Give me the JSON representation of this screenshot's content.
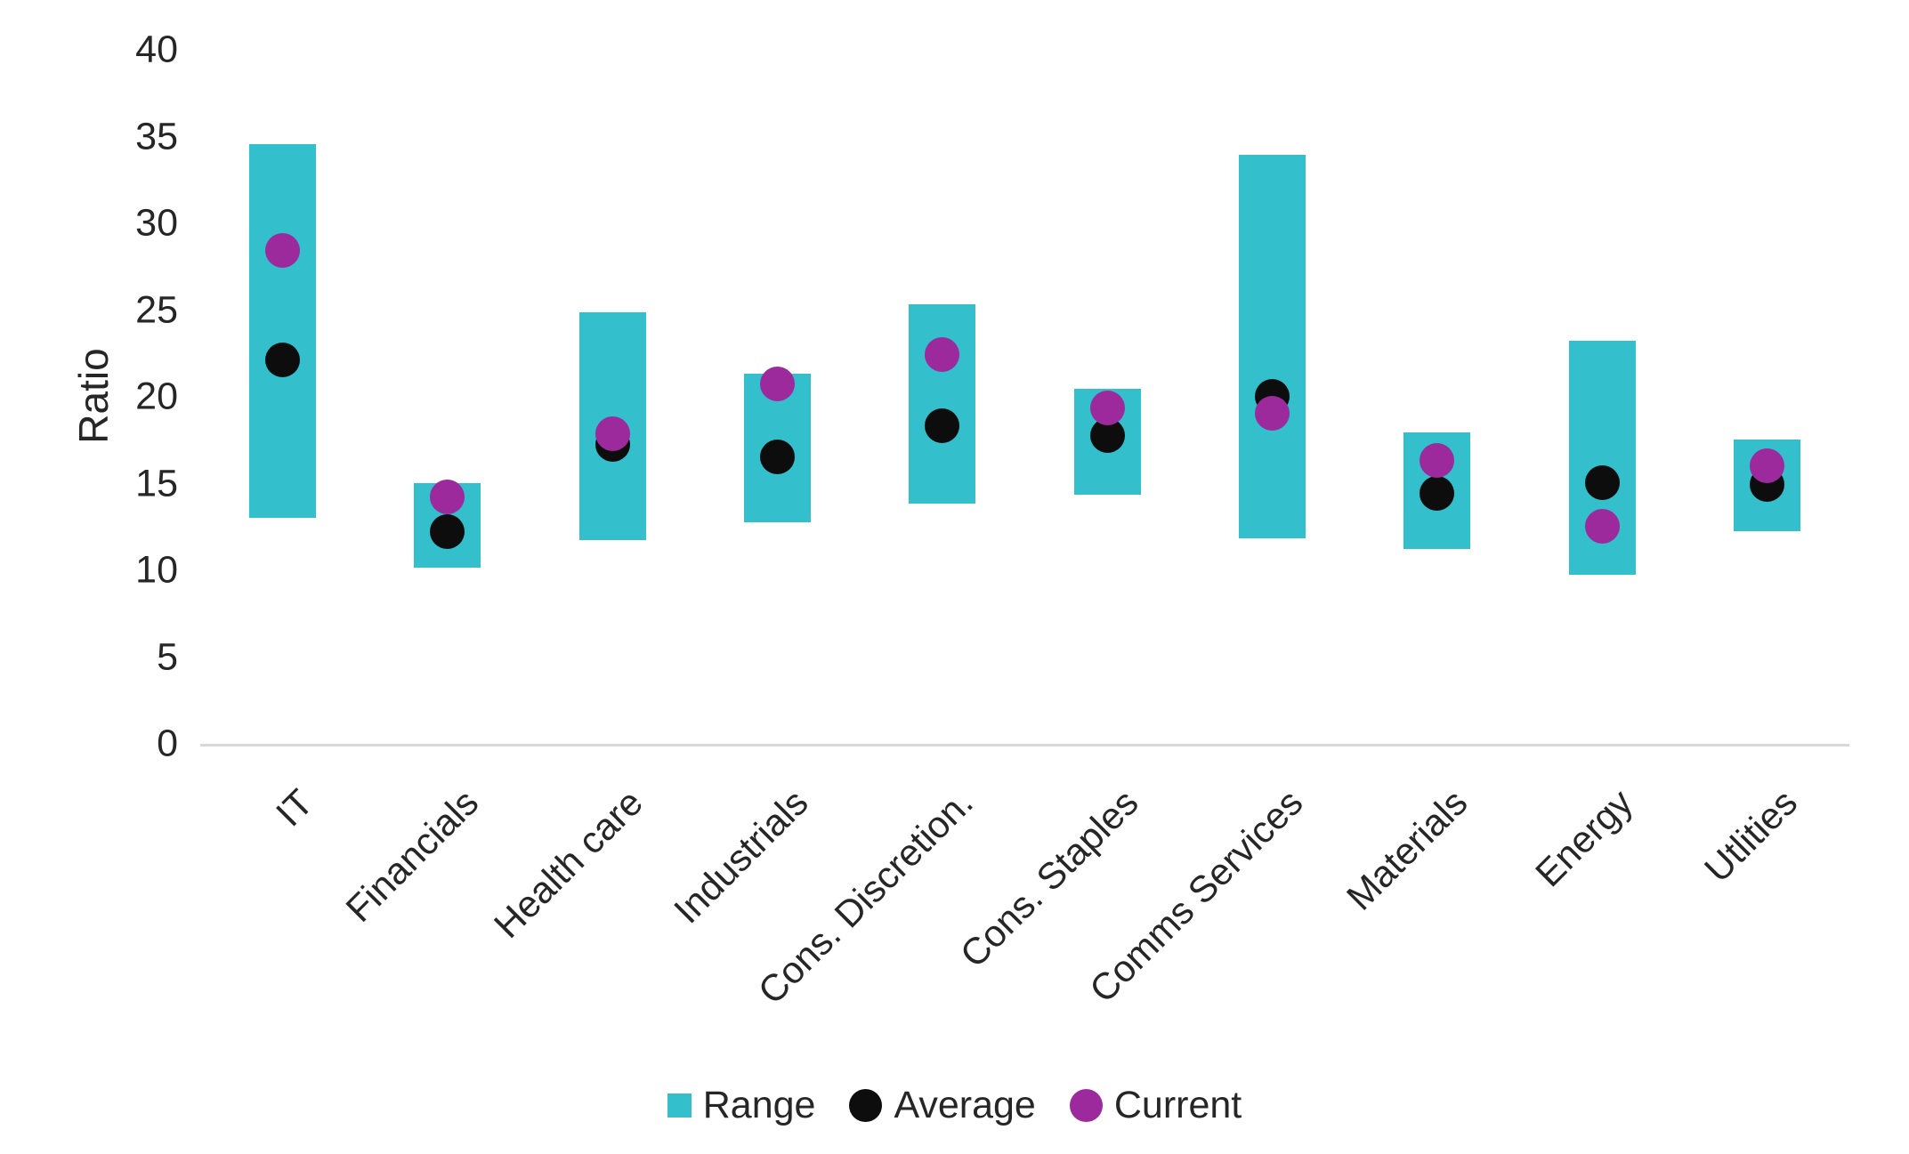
{
  "colors": {
    "range": "#33BFCB",
    "average": "#0D0D0D",
    "current": "#9C2A9C",
    "axis_line": "#D8D8D8",
    "text": "#262626",
    "background": "#FFFFFF"
  },
  "chart_data": {
    "type": "bar",
    "subtype": "floating-range-bars-with-point-markers",
    "title": "",
    "xlabel": "",
    "ylabel": "Ratio",
    "ylim": [
      0,
      40
    ],
    "ytick_step": 5,
    "yticks": [
      0,
      5,
      10,
      15,
      20,
      25,
      30,
      35,
      40
    ],
    "grid": false,
    "legend_position": "bottom-center",
    "x_label_rotation_deg": 45,
    "categories": [
      "IT",
      "Financials",
      "Health care",
      "Industrials",
      "Cons. Discretion.",
      "Cons. Staples",
      "Comms Services",
      "Materials",
      "Energy",
      "Utlities"
    ],
    "series": [
      {
        "name": "Range",
        "type": "floating-bar",
        "color": "#33BFCB",
        "low": [
          13.1,
          10.2,
          11.8,
          12.8,
          13.9,
          14.4,
          11.9,
          11.3,
          9.8,
          12.3
        ],
        "high": [
          34.6,
          15.1,
          24.9,
          21.4,
          25.4,
          20.5,
          34.0,
          18.0,
          23.3,
          17.6
        ]
      },
      {
        "name": "Average",
        "type": "point",
        "color": "#0D0D0D",
        "values": [
          22.2,
          12.3,
          17.3,
          16.6,
          18.4,
          17.8,
          20.1,
          14.5,
          15.1,
          15.0
        ]
      },
      {
        "name": "Current",
        "type": "point",
        "color": "#9C2A9C",
        "values": [
          28.5,
          14.3,
          17.9,
          20.8,
          22.5,
          19.4,
          19.1,
          16.4,
          12.6,
          16.1
        ]
      }
    ]
  }
}
